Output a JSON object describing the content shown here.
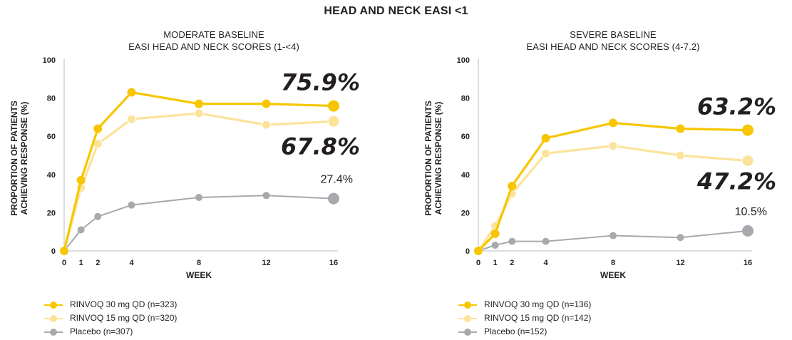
{
  "figure_title": "HEAD AND NECK EASI <1",
  "colors": {
    "rinvoq30": "#f7c600",
    "rinvoq15": "#fbe39a",
    "placebo": "#a7a9ac",
    "axis": "#d1d3d4"
  },
  "chart_data": [
    {
      "type": "line",
      "title_line1": "MODERATE BASELINE",
      "title_line2": "EASI HEAD AND NECK SCORES (1-<4)",
      "xlabel": "WEEK",
      "ylabel_line1": "PROPORTION OF PATIENTS",
      "ylabel_line2": "ACHIEVING RESPONSE (%)",
      "ylim": [
        0,
        100
      ],
      "yticks": [
        "0",
        "20",
        "40",
        "60",
        "80",
        "100"
      ],
      "x": [
        0,
        1,
        2,
        4,
        8,
        12,
        16
      ],
      "xticks": [
        "0",
        "1",
        "2",
        "4",
        "8",
        "12",
        "16"
      ],
      "series": [
        {
          "name": "RINVOQ 30 mg QD (n=323)",
          "key": "rinvoq30",
          "values": [
            0,
            37,
            64,
            83,
            77,
            77,
            75.9
          ],
          "end_label": "75.9%"
        },
        {
          "name": "RINVOQ 15 mg QD (n=320)",
          "key": "rinvoq15",
          "values": [
            0,
            33,
            56,
            69,
            72,
            66,
            67.8
          ],
          "end_label": "67.8%"
        },
        {
          "name": "Placebo (n=307)",
          "key": "placebo",
          "values": [
            0,
            11,
            18,
            24,
            28,
            29,
            27.4
          ],
          "end_label": "27.4%"
        }
      ]
    },
    {
      "type": "line",
      "title_line1": "SEVERE BASELINE",
      "title_line2": "EASI HEAD AND NECK SCORES (4-7.2)",
      "xlabel": "WEEK",
      "ylabel_line1": "PROPORTION OF PATIENTS",
      "ylabel_line2": "ACHIEVING RESPONSE (%)",
      "ylim": [
        0,
        100
      ],
      "yticks": [
        "0",
        "20",
        "40",
        "60",
        "80",
        "100"
      ],
      "x": [
        0,
        1,
        2,
        4,
        8,
        12,
        16
      ],
      "xticks": [
        "0",
        "1",
        "2",
        "4",
        "8",
        "12",
        "16"
      ],
      "series": [
        {
          "name": "RINVOQ 30 mg QD (n=136)",
          "key": "rinvoq30",
          "values": [
            0,
            9,
            34,
            59,
            67,
            64,
            63.2
          ],
          "end_label": "63.2%"
        },
        {
          "name": "RINVOQ 15 mg QD (n=142)",
          "key": "rinvoq15",
          "values": [
            0,
            13,
            30,
            51,
            55,
            50,
            47.2
          ],
          "end_label": "47.2%"
        },
        {
          "name": "Placebo (n=152)",
          "key": "placebo",
          "values": [
            0,
            3,
            5,
            5,
            8,
            7,
            10.5
          ],
          "end_label": "10.5%"
        }
      ]
    }
  ]
}
